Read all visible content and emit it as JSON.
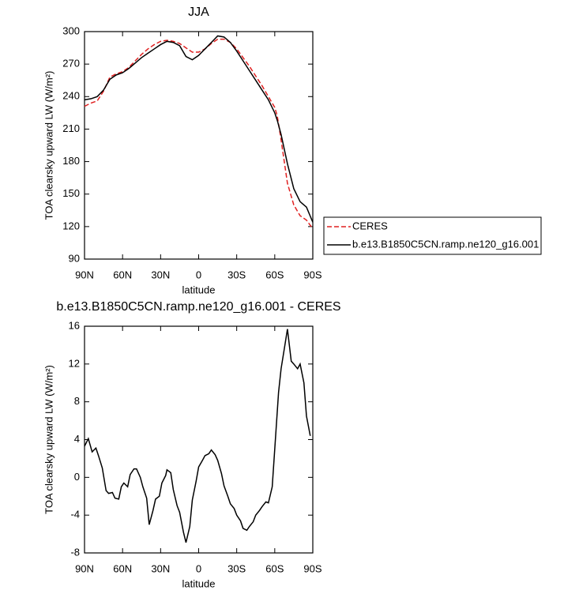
{
  "chart_data": [
    {
      "type": "line",
      "title": "JJA",
      "xlabel": "latitude",
      "ylabel": "TOA clearsky upward LW (W/m²)",
      "x": [
        90,
        85,
        80,
        75,
        70,
        65,
        60,
        55,
        50,
        45,
        40,
        35,
        30,
        25,
        20,
        15,
        10,
        5,
        0,
        -5,
        -10,
        -15,
        -20,
        -25,
        -30,
        -35,
        -40,
        -45,
        -50,
        -55,
        -60,
        -62,
        -65,
        -70,
        -75,
        -80,
        -85,
        -90
      ],
      "series": [
        {
          "name": "CERES",
          "color": "#e02020",
          "style": "dashed",
          "values": [
            231,
            234,
            236,
            245,
            258,
            261,
            263,
            267,
            273,
            279,
            284,
            288,
            291,
            292,
            291,
            289,
            285,
            281,
            281,
            284,
            289,
            293,
            293,
            290,
            284,
            276,
            268,
            259,
            250,
            240,
            230,
            222,
            200,
            160,
            140,
            130,
            126,
            118
          ]
        },
        {
          "name": "b.e13.B1850C5CN.ramp.ne120_g16.001",
          "color": "#000000",
          "style": "solid",
          "values": [
            237,
            238,
            240,
            246,
            256,
            260,
            262,
            266,
            271,
            276,
            280,
            284,
            288,
            291,
            290,
            287,
            277,
            274,
            278,
            284,
            290,
            296,
            295,
            290,
            282,
            273,
            264,
            255,
            246,
            237,
            225,
            218,
            205,
            178,
            155,
            143,
            138,
            124
          ]
        }
      ],
      "xlim": [
        90,
        -90
      ],
      "xticks": [
        {
          "value": 90,
          "label": "90N"
        },
        {
          "value": 60,
          "label": "60N"
        },
        {
          "value": 30,
          "label": "30N"
        },
        0,
        {
          "value": -30,
          "label": "30S"
        },
        {
          "value": -60,
          "label": "60S"
        },
        {
          "value": -90,
          "label": "90S"
        }
      ],
      "ylim": [
        90,
        300
      ],
      "yticks": [
        90,
        120,
        150,
        180,
        210,
        240,
        270,
        300
      ],
      "legend": "outside right"
    },
    {
      "type": "line",
      "title": "b.e13.B1850C5CN.ramp.ne120_g16.001 - CERES",
      "xlabel": "latitude",
      "ylabel": "TOA clearsky upward LW (W/m²)",
      "x": [
        90,
        87,
        84,
        81,
        79,
        76,
        73,
        71,
        68,
        66,
        63,
        61,
        59,
        56,
        54,
        51,
        49,
        46,
        44,
        41,
        39,
        36,
        34,
        31,
        29,
        26,
        25,
        22,
        20,
        17,
        15,
        12,
        10,
        7,
        5,
        2,
        0,
        -3,
        -5,
        -8,
        -10,
        -13,
        -15,
        -18,
        -20,
        -23,
        -25,
        -28,
        -30,
        -33,
        -35,
        -38,
        -40,
        -43,
        -45,
        -48,
        -50,
        -53,
        -55,
        -58,
        -60,
        -63,
        -65,
        -68,
        -70,
        -73,
        -75,
        -78,
        -80,
        -83,
        -85,
        -88
      ],
      "series": [
        {
          "color": "#000000",
          "style": "solid",
          "values": [
            3.3,
            4.1,
            2.7,
            3.1,
            2.3,
            1,
            -1.4,
            -1.7,
            -1.6,
            -2.2,
            -2.3,
            -1,
            -0.6,
            -1,
            0.3,
            0.9,
            0.9,
            0,
            -1,
            -2.2,
            -5,
            -3.5,
            -2.3,
            -2,
            -0.6,
            0.2,
            0.8,
            0.5,
            -1.3,
            -3,
            -3.7,
            -5.8,
            -6.9,
            -5.2,
            -2.4,
            -0.4,
            1.1,
            1.8,
            2.3,
            2.5,
            2.9,
            2.4,
            1.8,
            0.4,
            -0.9,
            -2,
            -2.8,
            -3.3,
            -4,
            -4.6,
            -5.4,
            -5.6,
            -5.2,
            -4.7,
            -4,
            -3.5,
            -3.1,
            -2.6,
            -2.7,
            -1,
            3,
            9,
            11.5,
            14,
            15.7,
            12.3,
            12,
            11.5,
            12,
            10,
            6.5,
            4.4
          ]
        }
      ],
      "xlim": [
        90,
        -90
      ],
      "xticks": [
        {
          "value": 90,
          "label": "90N"
        },
        {
          "value": 60,
          "label": "60N"
        },
        {
          "value": 30,
          "label": "30N"
        },
        0,
        {
          "value": -30,
          "label": "30S"
        },
        {
          "value": -60,
          "label": "60S"
        },
        {
          "value": -90,
          "label": "90S"
        }
      ],
      "ylim": [
        -8,
        16
      ],
      "yticks": [
        -8,
        -4,
        0,
        4,
        8,
        12,
        16
      ]
    }
  ]
}
